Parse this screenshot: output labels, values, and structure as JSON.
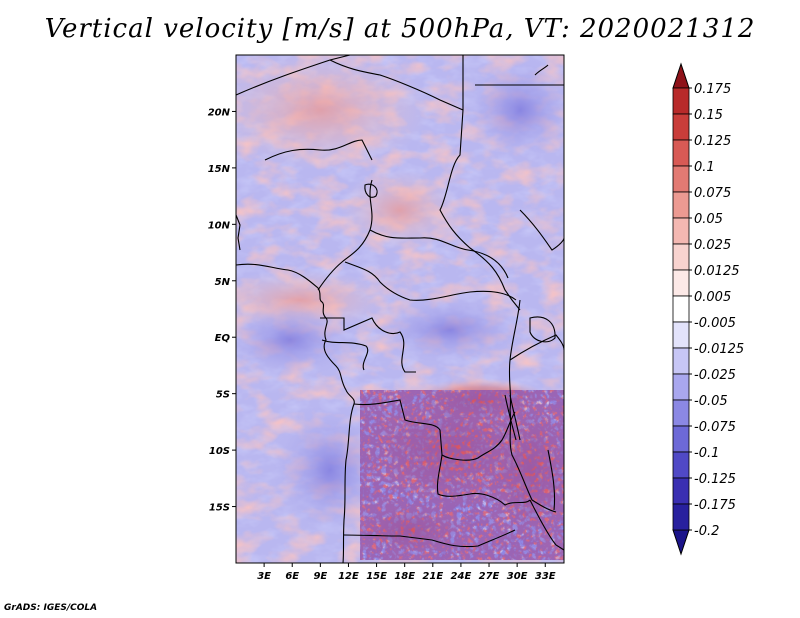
{
  "title": "Vertical velocity [m/s] at 500hPa, VT: 2020021312",
  "credit": "GrADS: IGES/COLA",
  "map": {
    "lon_range": [
      0,
      35
    ],
    "lat_range": [
      -20,
      25
    ],
    "lat_ticks": [
      {
        "value": 20,
        "label": "20N"
      },
      {
        "value": 15,
        "label": "15N"
      },
      {
        "value": 10,
        "label": "10N"
      },
      {
        "value": 5,
        "label": "5N"
      },
      {
        "value": 0,
        "label": "EQ"
      },
      {
        "value": -5,
        "label": "5S"
      },
      {
        "value": -10,
        "label": "10S"
      },
      {
        "value": -15,
        "label": "15S"
      }
    ],
    "lon_ticks": [
      {
        "value": 3,
        "label": "3E"
      },
      {
        "value": 6,
        "label": "6E"
      },
      {
        "value": 9,
        "label": "9E"
      },
      {
        "value": 12,
        "label": "12E"
      },
      {
        "value": 15,
        "label": "15E"
      },
      {
        "value": 18,
        "label": "18E"
      },
      {
        "value": 21,
        "label": "21E"
      },
      {
        "value": 24,
        "label": "24E"
      },
      {
        "value": 27,
        "label": "27E"
      },
      {
        "value": 30,
        "label": "30E"
      },
      {
        "value": 33,
        "label": "33E"
      }
    ]
  },
  "colorbar": {
    "levels": [
      {
        "label": "0.175",
        "color": "#a61c22"
      },
      {
        "label": "0.15",
        "color": "#b82a2a"
      },
      {
        "label": "0.125",
        "color": "#c93d3a"
      },
      {
        "label": "0.1",
        "color": "#d85a55"
      },
      {
        "label": "0.075",
        "color": "#e27a73"
      },
      {
        "label": "0.05",
        "color": "#ec9a92"
      },
      {
        "label": "0.025",
        "color": "#f4b8b2"
      },
      {
        "label": "0.0125",
        "color": "#f8d3cf"
      },
      {
        "label": "0.005",
        "color": "#fce9e7"
      },
      {
        "label": "-0.005",
        "color": "#ffffff"
      },
      {
        "label": "-0.0125",
        "color": "#e3e3fb"
      },
      {
        "label": "-0.025",
        "color": "#c7c6f5"
      },
      {
        "label": "-0.05",
        "color": "#a9a7ee"
      },
      {
        "label": "-0.075",
        "color": "#8b88e4"
      },
      {
        "label": "-0.1",
        "color": "#6d69d7"
      },
      {
        "label": "-0.125",
        "color": "#5049c6"
      },
      {
        "label": "-0.175",
        "color": "#3a2fb2"
      },
      {
        "label": "-0.2",
        "color": "#28209e"
      }
    ],
    "top_color": "#8e1219",
    "bottom_color": "#1b148a"
  }
}
